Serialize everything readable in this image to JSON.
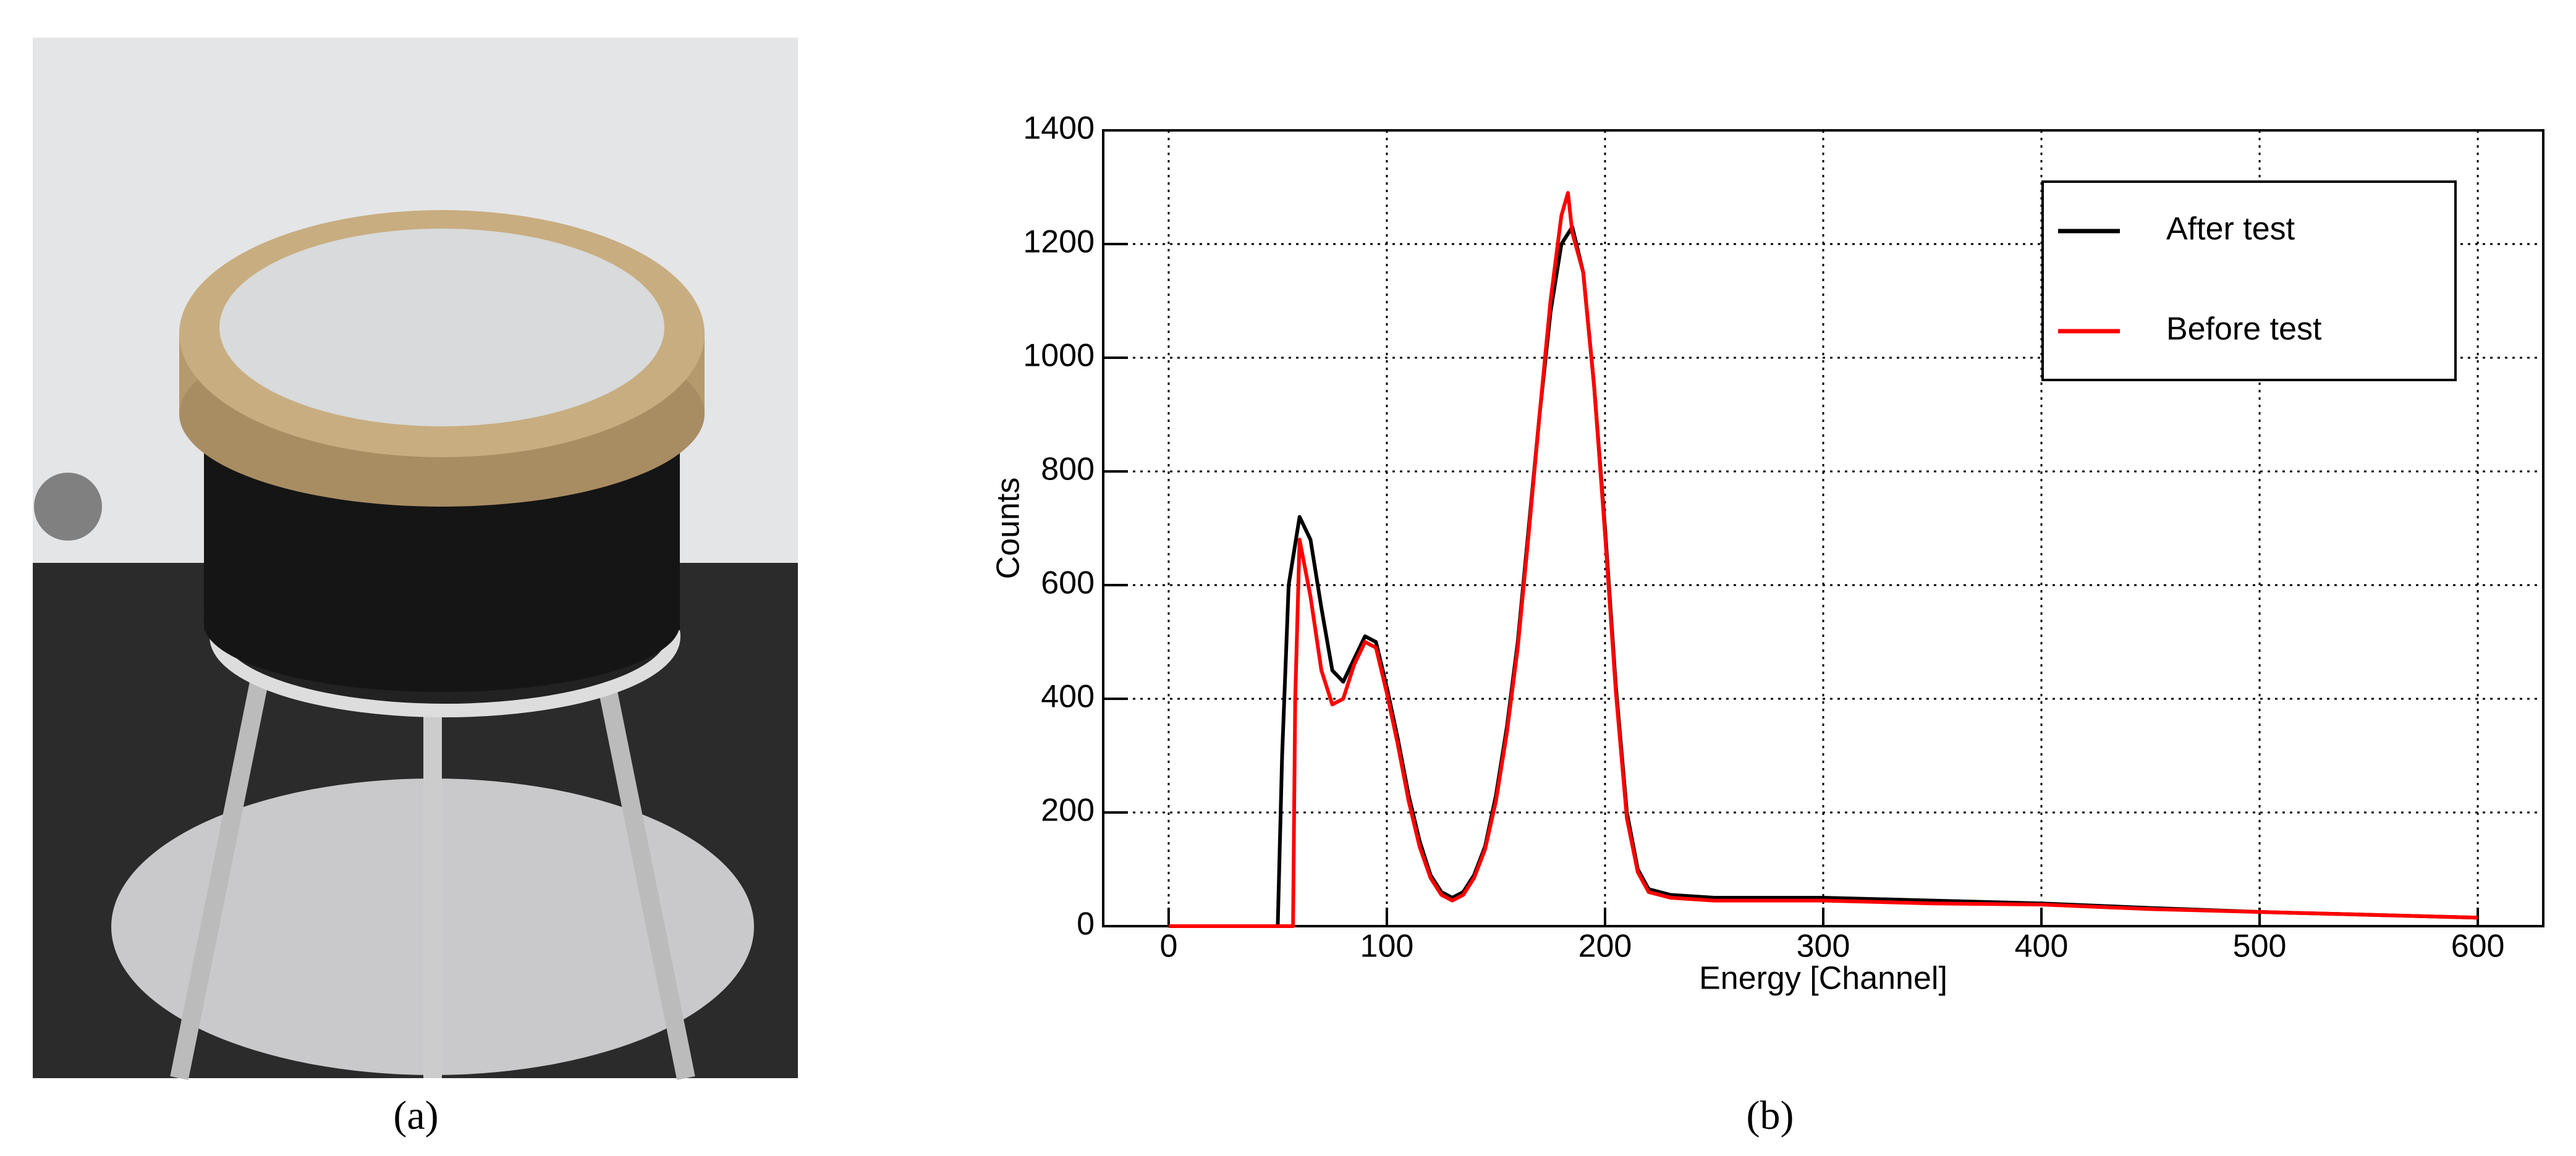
{
  "photo": {
    "caption": "(a)"
  },
  "chart_data": {
    "type": "line",
    "caption": "(b)",
    "x_label": "Energy [Channel]",
    "y_label": "Counts",
    "xlim": [
      -30,
      630
    ],
    "ylim": [
      0,
      1400
    ],
    "xticks": [
      0,
      100,
      200,
      300,
      400,
      500,
      600
    ],
    "yticks": [
      0,
      200,
      400,
      600,
      800,
      1000,
      1200,
      1400
    ],
    "grid": true,
    "legend": "upper right",
    "series": [
      {
        "name": "After test",
        "color": "#000000",
        "x": [
          0,
          50,
          52,
          55,
          60,
          65,
          70,
          75,
          80,
          85,
          90,
          95,
          100,
          105,
          110,
          115,
          120,
          125,
          130,
          135,
          140,
          145,
          150,
          155,
          160,
          165,
          170,
          175,
          180,
          185,
          190,
          195,
          200,
          205,
          210,
          215,
          220,
          230,
          250,
          300,
          350,
          400,
          450,
          500,
          550,
          600
        ],
        "values": [
          0,
          0,
          300,
          600,
          720,
          680,
          560,
          450,
          430,
          470,
          510,
          500,
          420,
          330,
          230,
          150,
          90,
          60,
          50,
          60,
          90,
          140,
          230,
          350,
          500,
          700,
          900,
          1080,
          1200,
          1230,
          1150,
          950,
          700,
          420,
          200,
          100,
          65,
          55,
          50,
          50,
          45,
          40,
          32,
          25,
          20,
          15
        ]
      },
      {
        "name": "Before test",
        "color": "#ff0000",
        "x": [
          0,
          57,
          58,
          60,
          65,
          70,
          75,
          80,
          85,
          90,
          95,
          100,
          105,
          110,
          115,
          120,
          125,
          130,
          135,
          140,
          145,
          150,
          155,
          160,
          165,
          170,
          175,
          180,
          183,
          185,
          190,
          195,
          200,
          205,
          210,
          215,
          220,
          230,
          250,
          300,
          350,
          400,
          450,
          500,
          550,
          600
        ],
        "values": [
          0,
          0,
          400,
          680,
          580,
          450,
          390,
          400,
          460,
          500,
          490,
          410,
          320,
          220,
          140,
          85,
          55,
          45,
          55,
          85,
          135,
          220,
          340,
          490,
          690,
          900,
          1100,
          1250,
          1290,
          1220,
          1150,
          950,
          690,
          410,
          190,
          95,
          60,
          50,
          45,
          45,
          40,
          38,
          30,
          25,
          20,
          15
        ]
      }
    ]
  }
}
